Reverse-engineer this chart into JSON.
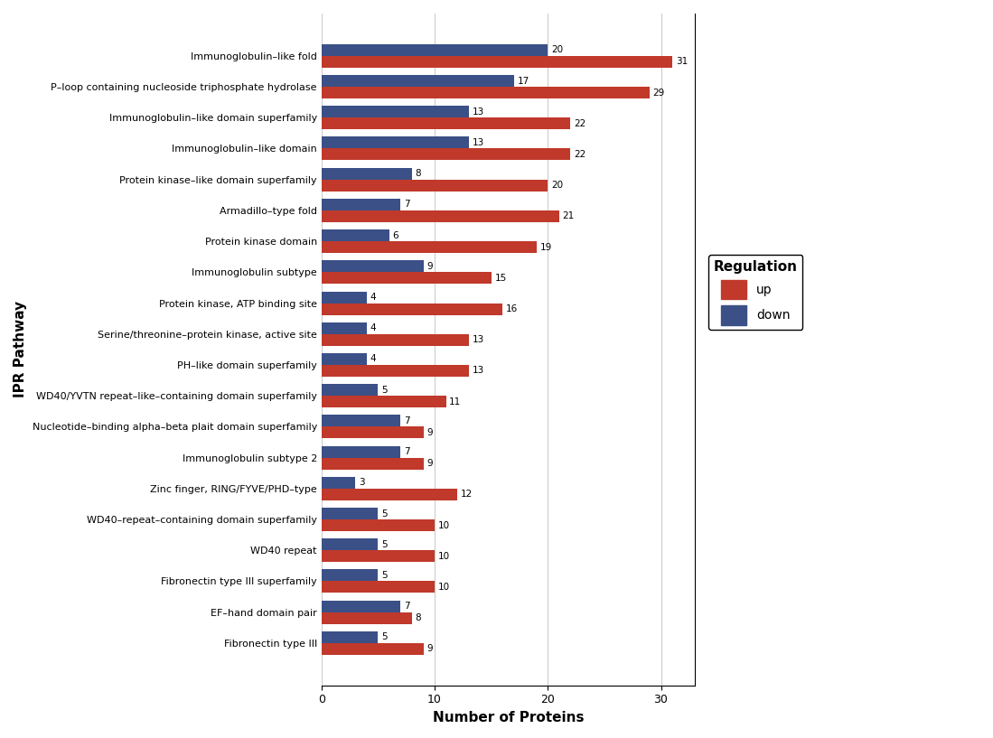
{
  "categories": [
    "Immunoglobulin–like fold",
    "P–loop containing nucleoside triphosphate hydrolase",
    "Immunoglobulin–like domain superfamily",
    "Immunoglobulin–like domain",
    "Protein kinase–like domain superfamily",
    "Armadillo–type fold",
    "Protein kinase domain",
    "Immunoglobulin subtype",
    "Protein kinase, ATP binding site",
    "Serine/threonine–protein kinase, active site",
    "PH–like domain superfamily",
    "WD40/YVTN repeat–like–containing domain superfamily",
    "Nucleotide–binding alpha–beta plait domain superfamily",
    "Immunoglobulin subtype 2",
    "Zinc finger, RING/FYVE/PHD–type",
    "WD40–repeat–containing domain superfamily",
    "WD40 repeat",
    "Fibronectin type III superfamily",
    "EF–hand domain pair",
    "Fibronectin type III"
  ],
  "up_values": [
    31,
    29,
    22,
    22,
    20,
    21,
    19,
    15,
    16,
    13,
    13,
    11,
    9,
    9,
    12,
    10,
    10,
    10,
    8,
    9
  ],
  "down_values": [
    20,
    17,
    13,
    13,
    8,
    7,
    6,
    9,
    4,
    4,
    4,
    5,
    7,
    7,
    3,
    5,
    5,
    5,
    7,
    5
  ],
  "up_color": "#C0392B",
  "down_color": "#3B5087",
  "bar_height": 0.38,
  "xlabel": "Number of Proteins",
  "ylabel": "IPR Pathway",
  "legend_title": "Regulation",
  "xlim": [
    0,
    33
  ],
  "xticks": [
    0,
    10,
    20,
    30
  ],
  "background_color": "#FFFFFF",
  "label_fontsize": 7.5,
  "axis_label_fontsize": 11,
  "ytick_fontsize": 8
}
